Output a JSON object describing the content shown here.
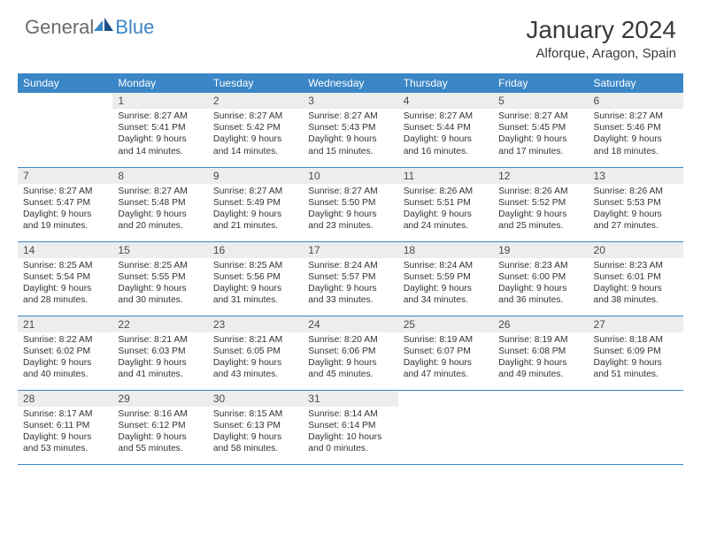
{
  "logo": {
    "part1": "General",
    "part2": "Blue"
  },
  "title": "January 2024",
  "location": "Alforque, Aragon, Spain",
  "weekdays": [
    "Sunday",
    "Monday",
    "Tuesday",
    "Wednesday",
    "Thursday",
    "Friday",
    "Saturday"
  ],
  "colors": {
    "header_bg": "#3b86c6",
    "daynum_bg": "#eceded",
    "text": "#333333",
    "rule": "#3b86c6"
  },
  "weeks": [
    [
      null,
      {
        "day": "1",
        "sunrise": "Sunrise: 8:27 AM",
        "sunset": "Sunset: 5:41 PM",
        "daylight1": "Daylight: 9 hours",
        "daylight2": "and 14 minutes."
      },
      {
        "day": "2",
        "sunrise": "Sunrise: 8:27 AM",
        "sunset": "Sunset: 5:42 PM",
        "daylight1": "Daylight: 9 hours",
        "daylight2": "and 14 minutes."
      },
      {
        "day": "3",
        "sunrise": "Sunrise: 8:27 AM",
        "sunset": "Sunset: 5:43 PM",
        "daylight1": "Daylight: 9 hours",
        "daylight2": "and 15 minutes."
      },
      {
        "day": "4",
        "sunrise": "Sunrise: 8:27 AM",
        "sunset": "Sunset: 5:44 PM",
        "daylight1": "Daylight: 9 hours",
        "daylight2": "and 16 minutes."
      },
      {
        "day": "5",
        "sunrise": "Sunrise: 8:27 AM",
        "sunset": "Sunset: 5:45 PM",
        "daylight1": "Daylight: 9 hours",
        "daylight2": "and 17 minutes."
      },
      {
        "day": "6",
        "sunrise": "Sunrise: 8:27 AM",
        "sunset": "Sunset: 5:46 PM",
        "daylight1": "Daylight: 9 hours",
        "daylight2": "and 18 minutes."
      }
    ],
    [
      {
        "day": "7",
        "sunrise": "Sunrise: 8:27 AM",
        "sunset": "Sunset: 5:47 PM",
        "daylight1": "Daylight: 9 hours",
        "daylight2": "and 19 minutes."
      },
      {
        "day": "8",
        "sunrise": "Sunrise: 8:27 AM",
        "sunset": "Sunset: 5:48 PM",
        "daylight1": "Daylight: 9 hours",
        "daylight2": "and 20 minutes."
      },
      {
        "day": "9",
        "sunrise": "Sunrise: 8:27 AM",
        "sunset": "Sunset: 5:49 PM",
        "daylight1": "Daylight: 9 hours",
        "daylight2": "and 21 minutes."
      },
      {
        "day": "10",
        "sunrise": "Sunrise: 8:27 AM",
        "sunset": "Sunset: 5:50 PM",
        "daylight1": "Daylight: 9 hours",
        "daylight2": "and 23 minutes."
      },
      {
        "day": "11",
        "sunrise": "Sunrise: 8:26 AM",
        "sunset": "Sunset: 5:51 PM",
        "daylight1": "Daylight: 9 hours",
        "daylight2": "and 24 minutes."
      },
      {
        "day": "12",
        "sunrise": "Sunrise: 8:26 AM",
        "sunset": "Sunset: 5:52 PM",
        "daylight1": "Daylight: 9 hours",
        "daylight2": "and 25 minutes."
      },
      {
        "day": "13",
        "sunrise": "Sunrise: 8:26 AM",
        "sunset": "Sunset: 5:53 PM",
        "daylight1": "Daylight: 9 hours",
        "daylight2": "and 27 minutes."
      }
    ],
    [
      {
        "day": "14",
        "sunrise": "Sunrise: 8:25 AM",
        "sunset": "Sunset: 5:54 PM",
        "daylight1": "Daylight: 9 hours",
        "daylight2": "and 28 minutes."
      },
      {
        "day": "15",
        "sunrise": "Sunrise: 8:25 AM",
        "sunset": "Sunset: 5:55 PM",
        "daylight1": "Daylight: 9 hours",
        "daylight2": "and 30 minutes."
      },
      {
        "day": "16",
        "sunrise": "Sunrise: 8:25 AM",
        "sunset": "Sunset: 5:56 PM",
        "daylight1": "Daylight: 9 hours",
        "daylight2": "and 31 minutes."
      },
      {
        "day": "17",
        "sunrise": "Sunrise: 8:24 AM",
        "sunset": "Sunset: 5:57 PM",
        "daylight1": "Daylight: 9 hours",
        "daylight2": "and 33 minutes."
      },
      {
        "day": "18",
        "sunrise": "Sunrise: 8:24 AM",
        "sunset": "Sunset: 5:59 PM",
        "daylight1": "Daylight: 9 hours",
        "daylight2": "and 34 minutes."
      },
      {
        "day": "19",
        "sunrise": "Sunrise: 8:23 AM",
        "sunset": "Sunset: 6:00 PM",
        "daylight1": "Daylight: 9 hours",
        "daylight2": "and 36 minutes."
      },
      {
        "day": "20",
        "sunrise": "Sunrise: 8:23 AM",
        "sunset": "Sunset: 6:01 PM",
        "daylight1": "Daylight: 9 hours",
        "daylight2": "and 38 minutes."
      }
    ],
    [
      {
        "day": "21",
        "sunrise": "Sunrise: 8:22 AM",
        "sunset": "Sunset: 6:02 PM",
        "daylight1": "Daylight: 9 hours",
        "daylight2": "and 40 minutes."
      },
      {
        "day": "22",
        "sunrise": "Sunrise: 8:21 AM",
        "sunset": "Sunset: 6:03 PM",
        "daylight1": "Daylight: 9 hours",
        "daylight2": "and 41 minutes."
      },
      {
        "day": "23",
        "sunrise": "Sunrise: 8:21 AM",
        "sunset": "Sunset: 6:05 PM",
        "daylight1": "Daylight: 9 hours",
        "daylight2": "and 43 minutes."
      },
      {
        "day": "24",
        "sunrise": "Sunrise: 8:20 AM",
        "sunset": "Sunset: 6:06 PM",
        "daylight1": "Daylight: 9 hours",
        "daylight2": "and 45 minutes."
      },
      {
        "day": "25",
        "sunrise": "Sunrise: 8:19 AM",
        "sunset": "Sunset: 6:07 PM",
        "daylight1": "Daylight: 9 hours",
        "daylight2": "and 47 minutes."
      },
      {
        "day": "26",
        "sunrise": "Sunrise: 8:19 AM",
        "sunset": "Sunset: 6:08 PM",
        "daylight1": "Daylight: 9 hours",
        "daylight2": "and 49 minutes."
      },
      {
        "day": "27",
        "sunrise": "Sunrise: 8:18 AM",
        "sunset": "Sunset: 6:09 PM",
        "daylight1": "Daylight: 9 hours",
        "daylight2": "and 51 minutes."
      }
    ],
    [
      {
        "day": "28",
        "sunrise": "Sunrise: 8:17 AM",
        "sunset": "Sunset: 6:11 PM",
        "daylight1": "Daylight: 9 hours",
        "daylight2": "and 53 minutes."
      },
      {
        "day": "29",
        "sunrise": "Sunrise: 8:16 AM",
        "sunset": "Sunset: 6:12 PM",
        "daylight1": "Daylight: 9 hours",
        "daylight2": "and 55 minutes."
      },
      {
        "day": "30",
        "sunrise": "Sunrise: 8:15 AM",
        "sunset": "Sunset: 6:13 PM",
        "daylight1": "Daylight: 9 hours",
        "daylight2": "and 58 minutes."
      },
      {
        "day": "31",
        "sunrise": "Sunrise: 8:14 AM",
        "sunset": "Sunset: 6:14 PM",
        "daylight1": "Daylight: 10 hours",
        "daylight2": "and 0 minutes."
      },
      null,
      null,
      null
    ]
  ]
}
